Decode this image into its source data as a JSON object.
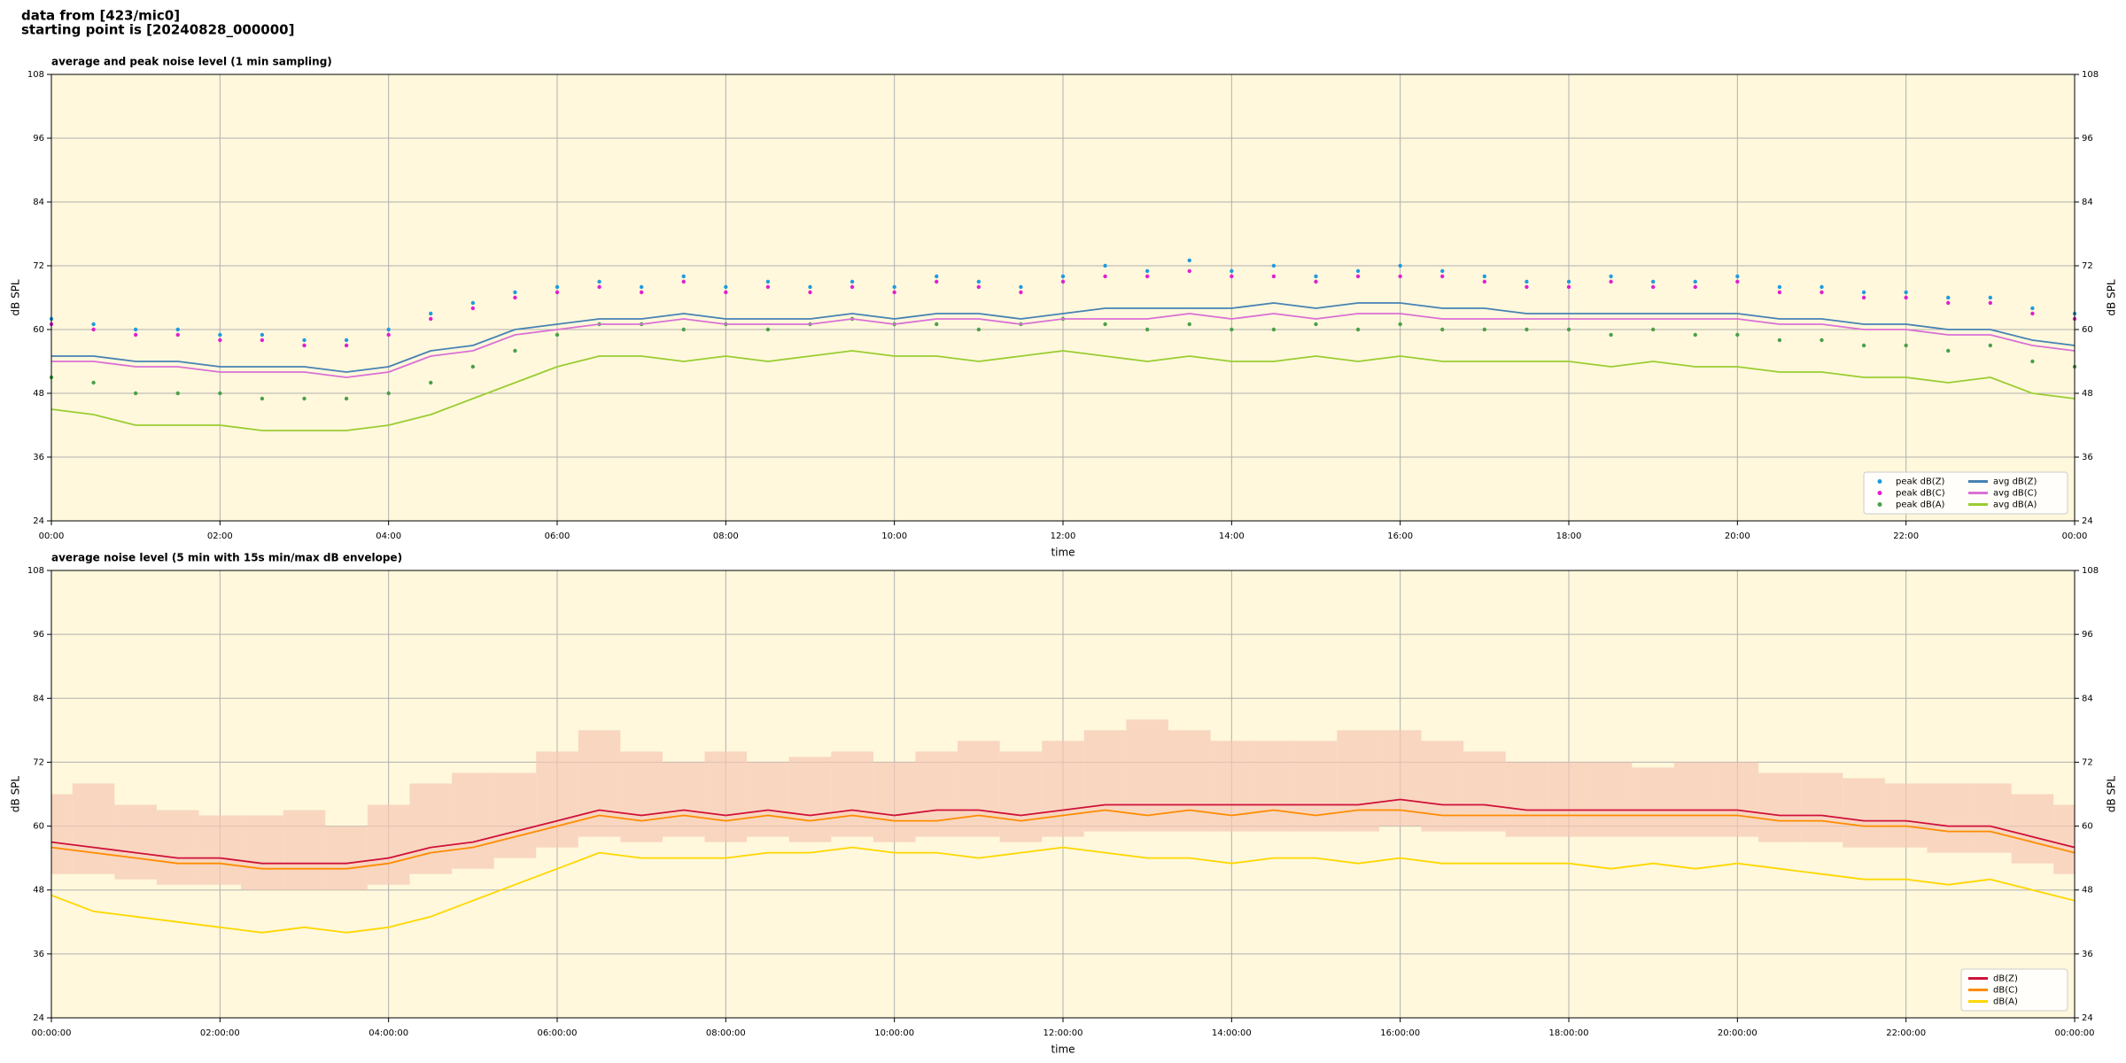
{
  "header": {
    "source": "data from [423/mic0]",
    "start": "starting point is [20240828_000000]"
  },
  "chart_data": [
    {
      "type": "line",
      "title": "average and peak noise level (1 min sampling)",
      "xlabel": "time",
      "ylabel": "dB SPL",
      "x": [
        0,
        0.5,
        1,
        1.5,
        2,
        2.5,
        3,
        3.5,
        4,
        4.5,
        5,
        5.5,
        6,
        6.5,
        7,
        7.5,
        8,
        8.5,
        9,
        9.5,
        10,
        10.5,
        11,
        11.5,
        12,
        12.5,
        13,
        13.5,
        14,
        14.5,
        15,
        15.5,
        16,
        16.5,
        17,
        17.5,
        18,
        18.5,
        19,
        19.5,
        20,
        20.5,
        21,
        21.5,
        22,
        22.5,
        23,
        23.5,
        24
      ],
      "xlim": [
        0,
        24
      ],
      "xticks": [
        {
          "value": 0,
          "label": "00:00"
        },
        {
          "value": 2,
          "label": "02:00"
        },
        {
          "value": 4,
          "label": "04:00"
        },
        {
          "value": 6,
          "label": "06:00"
        },
        {
          "value": 8,
          "label": "08:00"
        },
        {
          "value": 10,
          "label": "10:00"
        },
        {
          "value": 12,
          "label": "12:00"
        },
        {
          "value": 14,
          "label": "14:00"
        },
        {
          "value": 16,
          "label": "16:00"
        },
        {
          "value": 18,
          "label": "18:00"
        },
        {
          "value": 20,
          "label": "20:00"
        },
        {
          "value": 22,
          "label": "22:00"
        },
        {
          "value": 24,
          "label": "00:00"
        }
      ],
      "ylim": [
        24,
        108
      ],
      "yticks": [
        24,
        36,
        48,
        60,
        72,
        84,
        96,
        108
      ],
      "grid": true,
      "legend": "lower right",
      "background": "#fff8dc",
      "series": [
        {
          "name": "peak dB(Z)",
          "color": "#1f9be0",
          "style": "scatter",
          "values": [
            62,
            61,
            60,
            60,
            59,
            59,
            58,
            58,
            60,
            63,
            65,
            67,
            68,
            69,
            68,
            70,
            68,
            69,
            68,
            69,
            68,
            70,
            69,
            68,
            70,
            72,
            71,
            73,
            71,
            72,
            70,
            71,
            72,
            71,
            70,
            69,
            69,
            70,
            69,
            69,
            70,
            68,
            68,
            67,
            67,
            66,
            66,
            64,
            63
          ]
        },
        {
          "name": "peak dB(C)",
          "color": "#e020d0",
          "style": "scatter",
          "values": [
            61,
            60,
            59,
            59,
            58,
            58,
            57,
            57,
            59,
            62,
            64,
            66,
            67,
            68,
            67,
            69,
            67,
            68,
            67,
            68,
            67,
            69,
            68,
            67,
            69,
            70,
            70,
            71,
            70,
            70,
            69,
            70,
            70,
            70,
            69,
            68,
            68,
            69,
            68,
            68,
            69,
            67,
            67,
            66,
            66,
            65,
            65,
            63,
            62
          ]
        },
        {
          "name": "peak dB(A)",
          "color": "#4aa04a",
          "style": "scatter",
          "values": [
            51,
            50,
            48,
            48,
            48,
            47,
            47,
            47,
            48,
            50,
            53,
            56,
            59,
            61,
            61,
            60,
            61,
            60,
            61,
            62,
            61,
            61,
            60,
            61,
            62,
            61,
            60,
            61,
            60,
            60,
            61,
            60,
            61,
            60,
            60,
            60,
            60,
            59,
            60,
            59,
            59,
            58,
            58,
            57,
            57,
            56,
            57,
            54,
            53
          ]
        },
        {
          "name": "avg dB(Z)",
          "color": "#4682b4",
          "style": "line",
          "values": [
            55,
            55,
            54,
            54,
            53,
            53,
            53,
            52,
            53,
            56,
            57,
            60,
            61,
            62,
            62,
            63,
            62,
            62,
            62,
            63,
            62,
            63,
            63,
            62,
            63,
            64,
            64,
            64,
            64,
            65,
            64,
            65,
            65,
            64,
            64,
            63,
            63,
            63,
            63,
            63,
            63,
            62,
            62,
            61,
            61,
            60,
            60,
            58,
            57
          ]
        },
        {
          "name": "avg dB(C)",
          "color": "#da70d6",
          "style": "line",
          "values": [
            54,
            54,
            53,
            53,
            52,
            52,
            52,
            51,
            52,
            55,
            56,
            59,
            60,
            61,
            61,
            62,
            61,
            61,
            61,
            62,
            61,
            62,
            62,
            61,
            62,
            62,
            62,
            63,
            62,
            63,
            62,
            63,
            63,
            62,
            62,
            62,
            62,
            62,
            62,
            62,
            62,
            61,
            61,
            60,
            60,
            59,
            59,
            57,
            56
          ]
        },
        {
          "name": "avg dB(A)",
          "color": "#9acd32",
          "style": "line",
          "values": [
            45,
            44,
            42,
            42,
            42,
            41,
            41,
            41,
            42,
            44,
            47,
            50,
            53,
            55,
            55,
            54,
            55,
            54,
            55,
            56,
            55,
            55,
            54,
            55,
            56,
            55,
            54,
            55,
            54,
            54,
            55,
            54,
            55,
            54,
            54,
            54,
            54,
            53,
            54,
            53,
            53,
            52,
            52,
            51,
            51,
            50,
            51,
            48,
            47
          ]
        }
      ]
    },
    {
      "type": "line",
      "title": "average noise level (5 min with 15s min/max dB envelope)",
      "xlabel": "time",
      "ylabel": "dB SPL",
      "x": [
        0,
        0.5,
        1,
        1.5,
        2,
        2.5,
        3,
        3.5,
        4,
        4.5,
        5,
        5.5,
        6,
        6.5,
        7,
        7.5,
        8,
        8.5,
        9,
        9.5,
        10,
        10.5,
        11,
        11.5,
        12,
        12.5,
        13,
        13.5,
        14,
        14.5,
        15,
        15.5,
        16,
        16.5,
        17,
        17.5,
        18,
        18.5,
        19,
        19.5,
        20,
        20.5,
        21,
        21.5,
        22,
        22.5,
        23,
        23.5,
        24
      ],
      "xlim": [
        0,
        24
      ],
      "xticks": [
        {
          "value": 0,
          "label": "00:00:00"
        },
        {
          "value": 2,
          "label": "02:00:00"
        },
        {
          "value": 4,
          "label": "04:00:00"
        },
        {
          "value": 6,
          "label": "06:00:00"
        },
        {
          "value": 8,
          "label": "08:00:00"
        },
        {
          "value": 10,
          "label": "10:00:00"
        },
        {
          "value": 12,
          "label": "12:00:00"
        },
        {
          "value": 14,
          "label": "14:00:00"
        },
        {
          "value": 16,
          "label": "16:00:00"
        },
        {
          "value": 18,
          "label": "18:00:00"
        },
        {
          "value": 20,
          "label": "20:00:00"
        },
        {
          "value": 22,
          "label": "22:00:00"
        },
        {
          "value": 24,
          "label": "00:00:00"
        }
      ],
      "ylim": [
        24,
        108
      ],
      "yticks": [
        24,
        36,
        48,
        60,
        72,
        84,
        96,
        108
      ],
      "grid": true,
      "legend": "lower right",
      "background": "#fff8dc",
      "envelope": {
        "color": "#f6c8b4",
        "low": [
          51,
          51,
          50,
          49,
          49,
          48,
          48,
          48,
          49,
          51,
          52,
          54,
          56,
          58,
          57,
          58,
          57,
          58,
          57,
          58,
          57,
          58,
          58,
          57,
          58,
          59,
          59,
          59,
          59,
          59,
          59,
          59,
          60,
          59,
          59,
          58,
          58,
          58,
          58,
          58,
          58,
          57,
          57,
          56,
          56,
          55,
          55,
          53,
          51
        ],
        "high": [
          66,
          68,
          64,
          63,
          62,
          62,
          63,
          60,
          64,
          68,
          70,
          70,
          74,
          78,
          74,
          72,
          74,
          72,
          73,
          74,
          72,
          74,
          76,
          74,
          76,
          78,
          80,
          78,
          76,
          76,
          76,
          78,
          78,
          76,
          74,
          72,
          72,
          72,
          71,
          72,
          72,
          70,
          70,
          69,
          68,
          68,
          68,
          66,
          64
        ]
      },
      "series": [
        {
          "name": "dB(Z)",
          "color": "#d0103a",
          "style": "line",
          "values": [
            57,
            56,
            55,
            54,
            54,
            53,
            53,
            53,
            54,
            56,
            57,
            59,
            61,
            63,
            62,
            63,
            62,
            63,
            62,
            63,
            62,
            63,
            63,
            62,
            63,
            64,
            64,
            64,
            64,
            64,
            64,
            64,
            65,
            64,
            64,
            63,
            63,
            63,
            63,
            63,
            63,
            62,
            62,
            61,
            61,
            60,
            60,
            58,
            56
          ]
        },
        {
          "name": "dB(C)",
          "color": "#ff8c00",
          "style": "line",
          "values": [
            56,
            55,
            54,
            53,
            53,
            52,
            52,
            52,
            53,
            55,
            56,
            58,
            60,
            62,
            61,
            62,
            61,
            62,
            61,
            62,
            61,
            61,
            62,
            61,
            62,
            63,
            62,
            63,
            62,
            63,
            62,
            63,
            63,
            62,
            62,
            62,
            62,
            62,
            62,
            62,
            62,
            61,
            61,
            60,
            60,
            59,
            59,
            57,
            55
          ]
        },
        {
          "name": "dB(A)",
          "color": "#ffd700",
          "style": "line",
          "values": [
            47,
            44,
            43,
            42,
            41,
            40,
            41,
            40,
            41,
            43,
            46,
            49,
            52,
            55,
            54,
            54,
            54,
            55,
            55,
            56,
            55,
            55,
            54,
            55,
            56,
            55,
            54,
            54,
            53,
            54,
            54,
            53,
            54,
            53,
            53,
            53,
            53,
            52,
            53,
            52,
            53,
            52,
            51,
            50,
            50,
            49,
            50,
            48,
            46
          ]
        }
      ]
    }
  ]
}
